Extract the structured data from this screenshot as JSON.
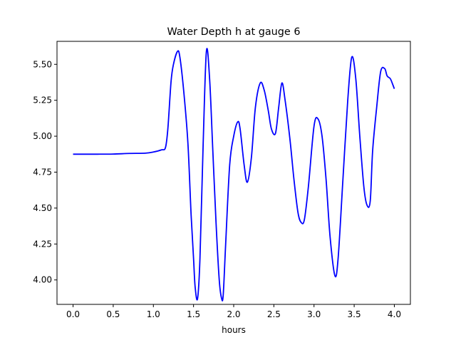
{
  "chart_data": {
    "type": "line",
    "title": "Water Depth h at gauge 6",
    "xlabel": "hours",
    "ylabel": "",
    "xlim": [
      -0.2,
      4.2
    ],
    "ylim": [
      3.83,
      5.66
    ],
    "xticks": [
      0.0,
      0.5,
      1.0,
      1.5,
      2.0,
      2.5,
      3.0,
      3.5,
      4.0
    ],
    "xtick_labels": [
      "0.0",
      "0.5",
      "1.0",
      "1.5",
      "2.0",
      "2.5",
      "3.0",
      "3.5",
      "4.0"
    ],
    "yticks": [
      4.0,
      4.25,
      4.5,
      4.75,
      5.0,
      5.25,
      5.5
    ],
    "ytick_labels": [
      "4.00",
      "4.25",
      "4.50",
      "4.75",
      "5.00",
      "5.25",
      "5.50"
    ],
    "grid": false,
    "legend": "none",
    "series": [
      {
        "color": "#0000ff",
        "x": [
          0.0,
          0.3,
          0.5,
          0.7,
          0.9,
          1.0,
          1.1,
          1.15,
          1.18,
          1.22,
          1.25,
          1.3,
          1.33,
          1.38,
          1.43,
          1.47,
          1.5,
          1.52,
          1.55,
          1.58,
          1.62,
          1.66,
          1.7,
          1.74,
          1.78,
          1.82,
          1.85,
          1.87,
          1.9,
          1.95,
          2.0,
          2.05,
          2.08,
          2.13,
          2.17,
          2.22,
          2.27,
          2.33,
          2.38,
          2.43,
          2.47,
          2.52,
          2.56,
          2.6,
          2.64,
          2.7,
          2.75,
          2.8,
          2.84,
          2.88,
          2.93,
          3.0,
          3.05,
          3.1,
          3.15,
          3.2,
          3.26,
          3.3,
          3.36,
          3.42,
          3.47,
          3.52,
          3.57,
          3.62,
          3.66,
          3.7,
          3.73,
          3.78,
          3.83,
          3.88,
          3.91,
          3.95,
          3.98,
          4.0
        ],
        "y": [
          4.875,
          4.875,
          4.876,
          4.88,
          4.882,
          4.89,
          4.905,
          4.92,
          5.05,
          5.38,
          5.5,
          5.59,
          5.55,
          5.3,
          4.95,
          4.45,
          4.15,
          3.95,
          3.87,
          4.15,
          4.95,
          5.59,
          5.4,
          4.9,
          4.4,
          4.0,
          3.87,
          3.9,
          4.25,
          4.8,
          5.0,
          5.1,
          5.05,
          4.8,
          4.68,
          4.85,
          5.2,
          5.37,
          5.32,
          5.18,
          5.05,
          5.02,
          5.2,
          5.37,
          5.25,
          4.98,
          4.7,
          4.47,
          4.4,
          4.42,
          4.65,
          5.07,
          5.12,
          5.0,
          4.7,
          4.3,
          4.03,
          4.15,
          4.7,
          5.25,
          5.55,
          5.4,
          5.0,
          4.65,
          4.52,
          4.55,
          4.9,
          5.2,
          5.45,
          5.47,
          5.42,
          5.4,
          5.36,
          5.33
        ]
      }
    ]
  }
}
